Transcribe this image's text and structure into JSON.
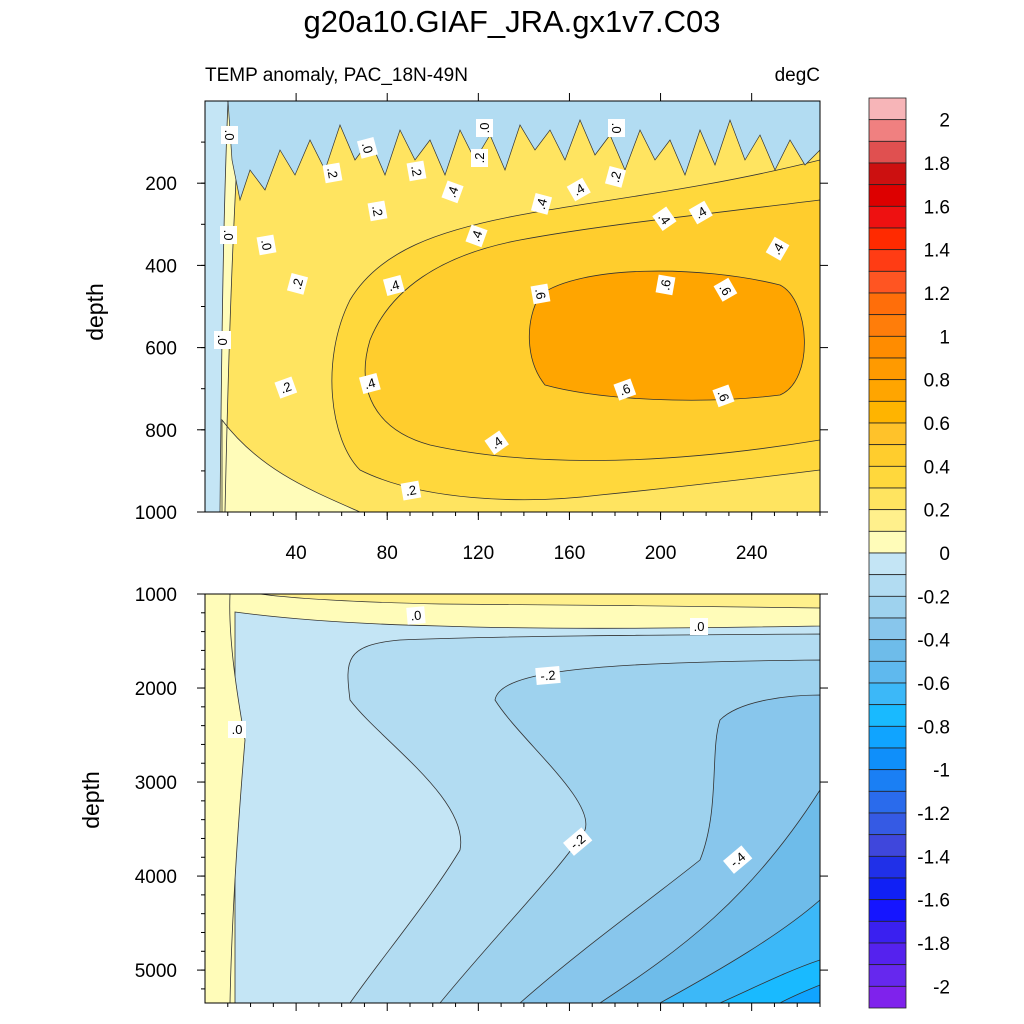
{
  "title": "g20a10.GIAF_JRA.gx1v7.C03",
  "colorbar": {
    "levels": [
      "2",
      "1.8",
      "1.6",
      "1.4",
      "1.2",
      "1",
      "0.8",
      "0.6",
      "0.4",
      "0.2",
      "0",
      "-0.2",
      "-0.4",
      "-0.6",
      "-0.8",
      "-1",
      "-1.2",
      "-1.4",
      "-1.6",
      "-1.8",
      "-2"
    ],
    "colors": [
      "#f7b5b8",
      "#f08080",
      "#e05050",
      "#cc1010",
      "#dd0000",
      "#ee1111",
      "#ff2a00",
      "#ff3c14",
      "#ff5522",
      "#ff6e0a",
      "#ff7d0a",
      "#ff8c00",
      "#ff9a00",
      "#ffa500",
      "#ffb400",
      "#ffc22a",
      "#ffcd2d",
      "#ffd83c",
      "#ffe460",
      "#fff08c",
      "#fffcb9",
      "#c4e5f5",
      "#b2dcf2",
      "#9ed2ee",
      "#88c6ec",
      "#6ebcea",
      "#5fb9ee",
      "#3cb8f8",
      "#19baff",
      "#10a4ff",
      "#0f8ffa",
      "#1a7ff4",
      "#2a6bec",
      "#355ae4",
      "#3f47dc",
      "#2030e8",
      "#1020f5",
      "#1515ff",
      "#3a20f0",
      "#5522ee",
      "#6628ee",
      "#7f22ec"
    ]
  },
  "chart_data": [
    {
      "type": "contour",
      "subtitle_left": "TEMP anomaly, PAC_18N-49N",
      "subtitle_right": "degC",
      "ylabel": "depth",
      "xlabel": "",
      "xlim": [
        0,
        270
      ],
      "ylim": [
        1000,
        0
      ],
      "xticks": [
        "40",
        "80",
        "120",
        "160",
        "200",
        "240"
      ],
      "yticks": [
        "200",
        "400",
        "600",
        "800",
        "1000"
      ],
      "contour_labels": [
        ".0",
        ".0",
        ".0",
        ".2",
        ".2",
        ".2",
        ".4",
        ".4",
        ".4",
        ".2",
        ".0",
        ".2",
        ".4",
        ".4",
        ".4",
        ".4",
        ".6",
        ".6",
        ".6",
        ".2",
        ".4",
        ".6",
        ".6",
        ".4",
        ".2",
        ".4",
        ".0",
        ".0",
        ".2",
        ".0"
      ],
      "unit": "degC"
    },
    {
      "type": "contour",
      "ylabel": "depth",
      "xlim": [
        0,
        270
      ],
      "ylim": [
        5350,
        1000
      ],
      "yticks": [
        "1000",
        "2000",
        "3000",
        "4000",
        "5000"
      ],
      "contour_labels": [
        ".0",
        ".0",
        "-.2",
        ".0",
        "-.2",
        "-.4"
      ],
      "unit": "degC"
    }
  ]
}
